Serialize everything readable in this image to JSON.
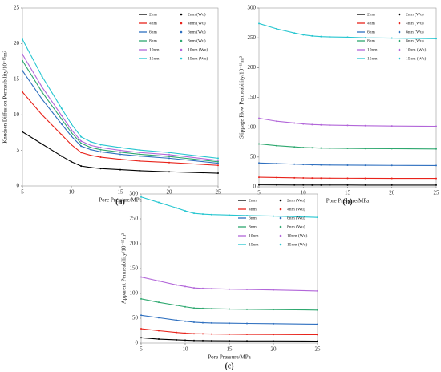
{
  "chart_data": [
    {
      "type": "line",
      "label": "(a)",
      "xlabel": "Pore Pressure/MPa",
      "ylabel": "Knudsen Diffusion Permeability/10⁻¹⁵m²",
      "x": [
        5,
        7,
        9,
        10,
        11,
        12,
        13,
        15,
        17,
        20,
        25
      ],
      "xlim": [
        5,
        25
      ],
      "xticks": [
        5,
        10,
        15,
        20,
        25
      ],
      "ylim": [
        0,
        25
      ],
      "yticks": [
        0,
        5,
        10,
        15,
        20,
        25
      ],
      "legend": "upper right",
      "series": [
        {
          "name": "2nm",
          "color": "#000000",
          "style": "line",
          "values": [
            7.6,
            5.9,
            4.2,
            3.4,
            2.8,
            2.6,
            2.45,
            2.3,
            2.15,
            2.0,
            1.8
          ]
        },
        {
          "name": "2nm (Wu)",
          "color": "#000000",
          "style": "markers",
          "values": [
            7.6,
            5.9,
            4.2,
            3.4,
            2.8,
            2.6,
            2.45,
            2.3,
            2.15,
            2.0,
            1.8
          ]
        },
        {
          "name": "4nm",
          "color": "#e8231b",
          "style": "line",
          "values": [
            13.2,
            10.0,
            7.2,
            5.8,
            4.7,
            4.3,
            4.05,
            3.75,
            3.5,
            3.3,
            2.9
          ]
        },
        {
          "name": "4nm (Wu)",
          "color": "#e8231b",
          "style": "markers",
          "values": [
            13.2,
            10.0,
            7.2,
            5.8,
            4.7,
            4.3,
            4.05,
            3.75,
            3.5,
            3.3,
            2.9
          ]
        },
        {
          "name": "6nm",
          "color": "#2e6fbf",
          "style": "line",
          "values": [
            16.2,
            12.2,
            8.7,
            7.0,
            5.6,
            5.1,
            4.8,
            4.45,
            4.2,
            3.9,
            3.2
          ]
        },
        {
          "name": "6nm (Wu)",
          "color": "#2e6fbf",
          "style": "markers",
          "values": [
            16.2,
            12.2,
            8.7,
            7.0,
            5.6,
            5.1,
            4.8,
            4.45,
            4.2,
            3.9,
            3.2
          ]
        },
        {
          "name": "8nm",
          "color": "#2ea86f",
          "style": "line",
          "values": [
            17.6,
            13.2,
            9.4,
            7.5,
            6.0,
            5.4,
            5.1,
            4.75,
            4.45,
            4.15,
            3.4
          ]
        },
        {
          "name": "8nm (Wu)",
          "color": "#2ea86f",
          "style": "markers",
          "values": [
            17.6,
            13.2,
            9.4,
            7.5,
            6.0,
            5.4,
            5.1,
            4.75,
            4.45,
            4.15,
            3.4
          ]
        },
        {
          "name": "10nm",
          "color": "#b266d9",
          "style": "line",
          "values": [
            18.5,
            13.9,
            9.9,
            7.9,
            6.3,
            5.7,
            5.4,
            5.0,
            4.7,
            4.4,
            3.6
          ]
        },
        {
          "name": "10nm (Wu)",
          "color": "#b266d9",
          "style": "markers",
          "values": [
            18.5,
            13.9,
            9.9,
            7.9,
            6.3,
            5.7,
            5.4,
            5.0,
            4.7,
            4.4,
            3.6
          ]
        },
        {
          "name": "15nm",
          "color": "#26c6d0",
          "style": "line",
          "values": [
            20.6,
            15.4,
            10.9,
            8.7,
            6.9,
            6.2,
            5.8,
            5.4,
            5.05,
            4.7,
            3.9
          ]
        },
        {
          "name": "15nm (Wu)",
          "color": "#26c6d0",
          "style": "markers",
          "values": [
            20.6,
            15.4,
            10.9,
            8.7,
            6.9,
            6.2,
            5.8,
            5.4,
            5.05,
            4.7,
            3.9
          ]
        }
      ]
    },
    {
      "type": "line",
      "label": "(b)",
      "xlabel": "Pore Pressure/MPa",
      "ylabel": "Slippage Flow Permeability/10⁻¹⁵m²",
      "x": [
        5,
        7,
        9,
        10,
        11,
        12,
        13,
        15,
        17,
        20,
        25
      ],
      "xlim": [
        5,
        25
      ],
      "xticks": [
        5,
        10,
        15,
        20,
        25
      ],
      "ylim": [
        0,
        300
      ],
      "yticks": [
        0,
        50,
        100,
        150,
        200,
        250,
        300
      ],
      "legend": "upper right",
      "series": [
        {
          "name": "2nm",
          "color": "#000000",
          "style": "line",
          "values": [
            3.2,
            3.1,
            3.0,
            3.0,
            2.9,
            2.9,
            2.9,
            2.9,
            2.8,
            2.8,
            2.8
          ]
        },
        {
          "name": "2nm (Wu)",
          "color": "#000000",
          "style": "markers",
          "values": [
            3.2,
            3.1,
            3.0,
            3.0,
            2.9,
            2.9,
            2.9,
            2.9,
            2.8,
            2.8,
            2.8
          ]
        },
        {
          "name": "4nm",
          "color": "#e8231b",
          "style": "line",
          "values": [
            16,
            15.5,
            15,
            14.8,
            14.6,
            14.5,
            14.4,
            14.3,
            14.2,
            14.1,
            14.0
          ]
        },
        {
          "name": "4nm (Wu)",
          "color": "#e8231b",
          "style": "markers",
          "values": [
            16,
            15.5,
            15,
            14.8,
            14.6,
            14.5,
            14.4,
            14.3,
            14.2,
            14.1,
            14.0
          ]
        },
        {
          "name": "6nm",
          "color": "#2e6fbf",
          "style": "line",
          "values": [
            40,
            39,
            38,
            37.5,
            37,
            36.8,
            36.6,
            36.4,
            36.2,
            36,
            35.8
          ]
        },
        {
          "name": "6nm (Wu)",
          "color": "#2e6fbf",
          "style": "markers",
          "values": [
            40,
            39,
            38,
            37.5,
            37,
            36.8,
            36.6,
            36.4,
            36.2,
            36,
            35.8
          ]
        },
        {
          "name": "8nm",
          "color": "#2ea86f",
          "style": "line",
          "values": [
            72,
            69,
            67,
            66,
            65.5,
            65,
            64.8,
            64.5,
            64.2,
            64,
            63.5
          ]
        },
        {
          "name": "8nm (Wu)",
          "color": "#2ea86f",
          "style": "markers",
          "values": [
            72,
            69,
            67,
            66,
            65.5,
            65,
            64.8,
            64.5,
            64.2,
            64,
            63.5
          ]
        },
        {
          "name": "10nm",
          "color": "#b266d9",
          "style": "line",
          "values": [
            115,
            110,
            107,
            105.5,
            104.5,
            104,
            103.5,
            103,
            102.5,
            102,
            101.5
          ]
        },
        {
          "name": "10nm (Wu)",
          "color": "#b266d9",
          "style": "markers",
          "values": [
            115,
            110,
            107,
            105.5,
            104.5,
            104,
            103.5,
            103,
            102.5,
            102,
            101.5
          ]
        },
        {
          "name": "15nm",
          "color": "#26c6d0",
          "style": "line",
          "values": [
            274,
            265,
            258,
            255,
            253,
            252,
            251.5,
            251,
            250,
            249.5,
            248.5
          ]
        },
        {
          "name": "15nm (Wu)",
          "color": "#26c6d0",
          "style": "markers",
          "values": [
            274,
            265,
            258,
            255,
            253,
            252,
            251.5,
            251,
            250,
            249.5,
            248.5
          ]
        }
      ]
    },
    {
      "type": "line",
      "label": "(c)",
      "xlabel": "Pore Pressure/MPa",
      "ylabel": "Apparent Permeability/10⁻¹⁵m²",
      "x": [
        5,
        7,
        9,
        10,
        11,
        12,
        13,
        15,
        17,
        20,
        25
      ],
      "xlim": [
        5,
        25
      ],
      "xticks": [
        5,
        10,
        15,
        20,
        25
      ],
      "ylim": [
        0,
        300
      ],
      "yticks": [
        0,
        50,
        100,
        150,
        200,
        250,
        300
      ],
      "legend": "upper right",
      "series": [
        {
          "name": "2nm",
          "color": "#000000",
          "style": "line",
          "values": [
            10.8,
            8,
            6.5,
            5.8,
            5.2,
            5.0,
            4.8,
            4.6,
            4.4,
            4.3,
            4.0
          ]
        },
        {
          "name": "2nm (Wu)",
          "color": "#000000",
          "style": "markers",
          "values": [
            10.8,
            8,
            6.5,
            5.8,
            5.2,
            5.0,
            4.8,
            4.6,
            4.4,
            4.3,
            4.0
          ]
        },
        {
          "name": "4nm",
          "color": "#e8231b",
          "style": "line",
          "values": [
            29,
            25,
            21.5,
            20,
            19,
            18.7,
            18.4,
            18,
            17.7,
            17.4,
            17
          ]
        },
        {
          "name": "4nm (Wu)",
          "color": "#e8231b",
          "style": "markers",
          "values": [
            29,
            25,
            21.5,
            20,
            19,
            18.7,
            18.4,
            18,
            17.7,
            17.4,
            17
          ]
        },
        {
          "name": "6nm",
          "color": "#2e6fbf",
          "style": "line",
          "values": [
            56,
            51,
            46,
            44,
            42,
            41,
            40.5,
            40,
            39.5,
            39,
            38
          ]
        },
        {
          "name": "6nm (Wu)",
          "color": "#2e6fbf",
          "style": "markers",
          "values": [
            56,
            51,
            46,
            44,
            42,
            41,
            40.5,
            40,
            39.5,
            39,
            38
          ]
        },
        {
          "name": "8nm",
          "color": "#2ea86f",
          "style": "line",
          "values": [
            89,
            82,
            76,
            73,
            70.5,
            69.8,
            69.2,
            68.5,
            68,
            67.5,
            66.5
          ]
        },
        {
          "name": "8nm (Wu)",
          "color": "#2ea86f",
          "style": "markers",
          "values": [
            89,
            82,
            76,
            73,
            70.5,
            69.8,
            69.2,
            68.5,
            68,
            67.5,
            66.5
          ]
        },
        {
          "name": "10nm",
          "color": "#b266d9",
          "style": "line",
          "values": [
            133,
            125,
            117,
            114,
            111,
            110,
            109.5,
            108.5,
            108,
            107,
            105
          ]
        },
        {
          "name": "10nm (Wu)",
          "color": "#b266d9",
          "style": "markers",
          "values": [
            133,
            125,
            117,
            114,
            111,
            110,
            109.5,
            108.5,
            108,
            107,
            105
          ]
        },
        {
          "name": "15nm",
          "color": "#26c6d0",
          "style": "line",
          "values": [
            294,
            283,
            272,
            266,
            261,
            259.5,
            258.5,
            257.5,
            256.5,
            255.5,
            253
          ]
        },
        {
          "name": "15nm (Wu)",
          "color": "#26c6d0",
          "style": "markers",
          "values": [
            294,
            283,
            272,
            266,
            261,
            259.5,
            258.5,
            257.5,
            256.5,
            255.5,
            253
          ]
        }
      ]
    }
  ]
}
